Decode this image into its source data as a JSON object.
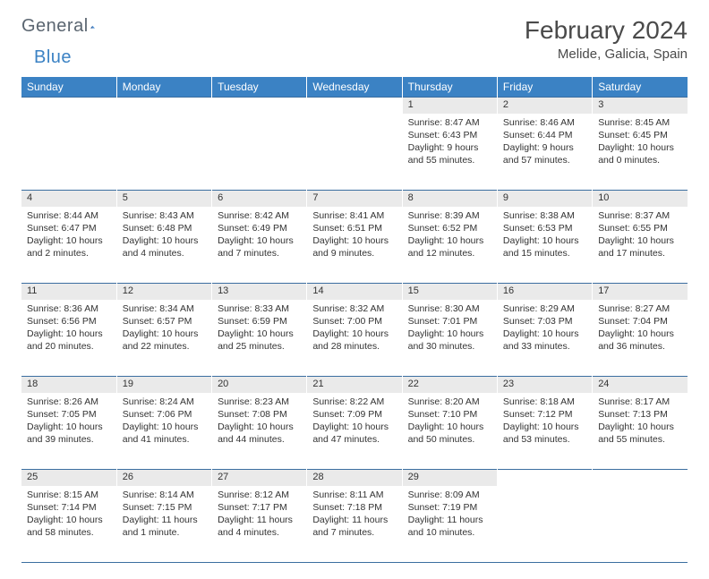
{
  "brand": {
    "word1": "General",
    "word2": "Blue"
  },
  "title": "February 2024",
  "location": "Melide, Galicia, Spain",
  "colors": {
    "header_bg": "#3b82c4",
    "header_text": "#ffffff",
    "daynum_bg": "#eaeaea",
    "divider": "#3b6ea0",
    "text": "#333333",
    "logo_gray": "#5a6570",
    "logo_blue": "#3b82c4"
  },
  "weekdays": [
    "Sunday",
    "Monday",
    "Tuesday",
    "Wednesday",
    "Thursday",
    "Friday",
    "Saturday"
  ],
  "weeks": [
    [
      null,
      null,
      null,
      null,
      {
        "n": "1",
        "sr": "8:47 AM",
        "ss": "6:43 PM",
        "dl": "9 hours and 55 minutes."
      },
      {
        "n": "2",
        "sr": "8:46 AM",
        "ss": "6:44 PM",
        "dl": "9 hours and 57 minutes."
      },
      {
        "n": "3",
        "sr": "8:45 AM",
        "ss": "6:45 PM",
        "dl": "10 hours and 0 minutes."
      }
    ],
    [
      {
        "n": "4",
        "sr": "8:44 AM",
        "ss": "6:47 PM",
        "dl": "10 hours and 2 minutes."
      },
      {
        "n": "5",
        "sr": "8:43 AM",
        "ss": "6:48 PM",
        "dl": "10 hours and 4 minutes."
      },
      {
        "n": "6",
        "sr": "8:42 AM",
        "ss": "6:49 PM",
        "dl": "10 hours and 7 minutes."
      },
      {
        "n": "7",
        "sr": "8:41 AM",
        "ss": "6:51 PM",
        "dl": "10 hours and 9 minutes."
      },
      {
        "n": "8",
        "sr": "8:39 AM",
        "ss": "6:52 PM",
        "dl": "10 hours and 12 minutes."
      },
      {
        "n": "9",
        "sr": "8:38 AM",
        "ss": "6:53 PM",
        "dl": "10 hours and 15 minutes."
      },
      {
        "n": "10",
        "sr": "8:37 AM",
        "ss": "6:55 PM",
        "dl": "10 hours and 17 minutes."
      }
    ],
    [
      {
        "n": "11",
        "sr": "8:36 AM",
        "ss": "6:56 PM",
        "dl": "10 hours and 20 minutes."
      },
      {
        "n": "12",
        "sr": "8:34 AM",
        "ss": "6:57 PM",
        "dl": "10 hours and 22 minutes."
      },
      {
        "n": "13",
        "sr": "8:33 AM",
        "ss": "6:59 PM",
        "dl": "10 hours and 25 minutes."
      },
      {
        "n": "14",
        "sr": "8:32 AM",
        "ss": "7:00 PM",
        "dl": "10 hours and 28 minutes."
      },
      {
        "n": "15",
        "sr": "8:30 AM",
        "ss": "7:01 PM",
        "dl": "10 hours and 30 minutes."
      },
      {
        "n": "16",
        "sr": "8:29 AM",
        "ss": "7:03 PM",
        "dl": "10 hours and 33 minutes."
      },
      {
        "n": "17",
        "sr": "8:27 AM",
        "ss": "7:04 PM",
        "dl": "10 hours and 36 minutes."
      }
    ],
    [
      {
        "n": "18",
        "sr": "8:26 AM",
        "ss": "7:05 PM",
        "dl": "10 hours and 39 minutes."
      },
      {
        "n": "19",
        "sr": "8:24 AM",
        "ss": "7:06 PM",
        "dl": "10 hours and 41 minutes."
      },
      {
        "n": "20",
        "sr": "8:23 AM",
        "ss": "7:08 PM",
        "dl": "10 hours and 44 minutes."
      },
      {
        "n": "21",
        "sr": "8:22 AM",
        "ss": "7:09 PM",
        "dl": "10 hours and 47 minutes."
      },
      {
        "n": "22",
        "sr": "8:20 AM",
        "ss": "7:10 PM",
        "dl": "10 hours and 50 minutes."
      },
      {
        "n": "23",
        "sr": "8:18 AM",
        "ss": "7:12 PM",
        "dl": "10 hours and 53 minutes."
      },
      {
        "n": "24",
        "sr": "8:17 AM",
        "ss": "7:13 PM",
        "dl": "10 hours and 55 minutes."
      }
    ],
    [
      {
        "n": "25",
        "sr": "8:15 AM",
        "ss": "7:14 PM",
        "dl": "10 hours and 58 minutes."
      },
      {
        "n": "26",
        "sr": "8:14 AM",
        "ss": "7:15 PM",
        "dl": "11 hours and 1 minute."
      },
      {
        "n": "27",
        "sr": "8:12 AM",
        "ss": "7:17 PM",
        "dl": "11 hours and 4 minutes."
      },
      {
        "n": "28",
        "sr": "8:11 AM",
        "ss": "7:18 PM",
        "dl": "11 hours and 7 minutes."
      },
      {
        "n": "29",
        "sr": "8:09 AM",
        "ss": "7:19 PM",
        "dl": "11 hours and 10 minutes."
      },
      null,
      null
    ]
  ],
  "labels": {
    "sunrise": "Sunrise:",
    "sunset": "Sunset:",
    "daylight": "Daylight:"
  }
}
